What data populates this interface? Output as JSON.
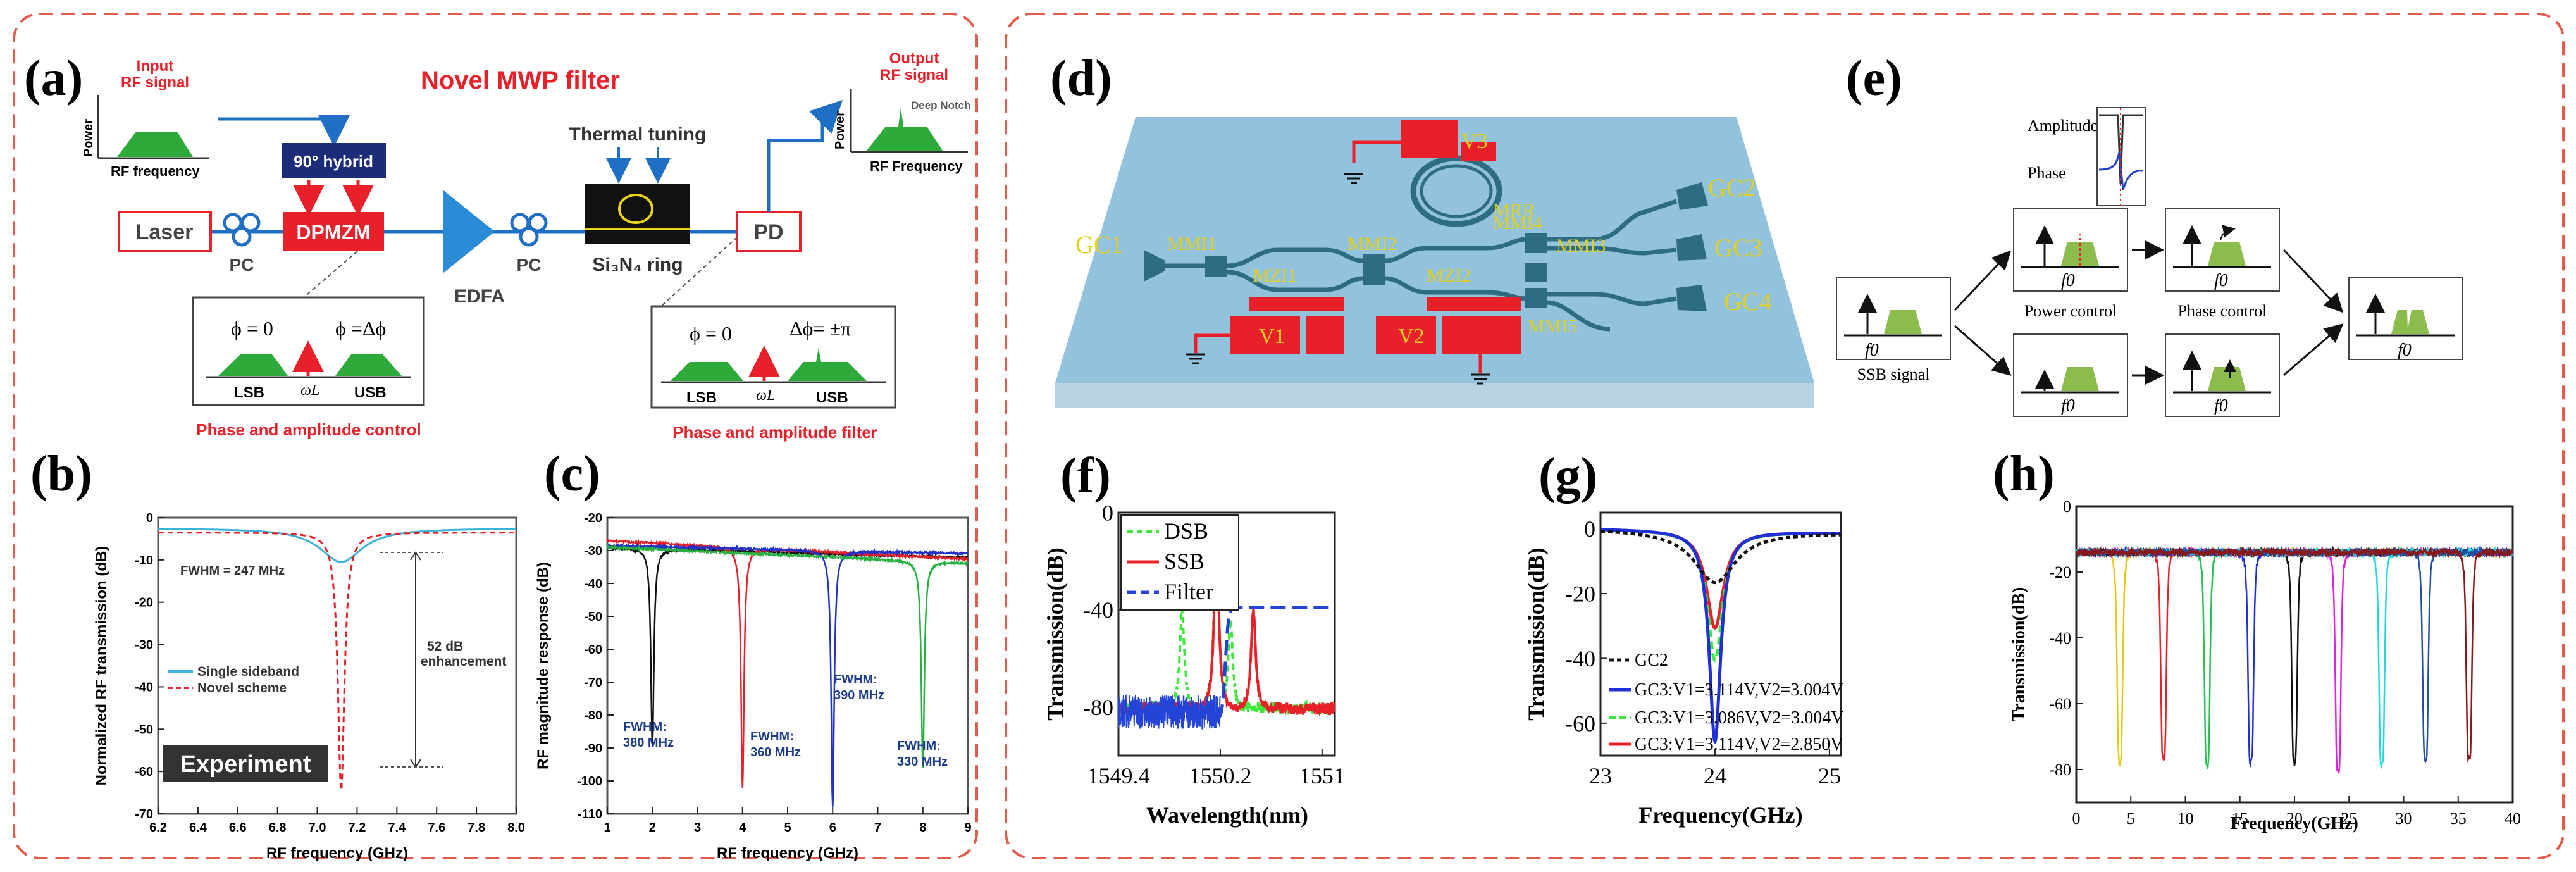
{
  "colors": {
    "frame": "#e25b4b",
    "red": "#e8202a",
    "green": "#2eaa3a",
    "navy": "#1d2c78",
    "blue": "#1f6fc4",
    "chipteal": "#2e6c84",
    "gcyellow": "#e0d020",
    "marker": "#f0e020"
  },
  "a": {
    "letter": "(a)",
    "title": "Novel MWP filter",
    "input_label_1": "Input",
    "input_label_2": "RF signal",
    "power_label": "Power",
    "rf_freq_label": "RF frequency",
    "hybrid_label": "90° hybrid",
    "laser_label": "Laser",
    "dpmzm_label": "DPMZM",
    "pc_label_1": "PC",
    "edfa_label": "EDFA",
    "pc_label_2": "PC",
    "thermal_label": "Thermal tuning",
    "ring_label": "Si₃N₄ ring",
    "pd_label": "PD",
    "output_label_1": "Output",
    "output_label_2": "RF signal",
    "deep_notch_label": "Deep Notch",
    "output_power_label": "Power",
    "output_freq_label": "RF Frequency",
    "inset1_phi0": "ϕ = 0",
    "inset1_phidelta": "ϕ =Δϕ",
    "inset1_lsb": "LSB",
    "inset1_usb": "USB",
    "inset1_omega": "ωL",
    "inset2_phi0": "ϕ = 0",
    "inset2_dphi": "Δϕ= ±π",
    "inset2_lsb": "LSB",
    "inset2_usb": "USB",
    "inset2_omega": "ωL",
    "caption_left": "Phase and amplitude control",
    "caption_right": "Phase and amplitude filter"
  },
  "b": {
    "letter": "(b)",
    "fwhm_label": "FWHM = 247 MHz",
    "enhancement_1": "52 dB",
    "enhancement_2": "enhancement",
    "legend_ssb": "Single sideband",
    "legend_novel": "Novel scheme",
    "badge": "Experiment",
    "xlabel": "RF frequency (GHz)",
    "ylabel": "Normalized RF transmission (dB)"
  },
  "c": {
    "letter": "(c)",
    "xlabel": "RF frequency (GHz)",
    "ylabel": "RF magnitude response (dB)",
    "fwhm_labels": [
      {
        "l1": "FWHM:",
        "l2": "380 MHz"
      },
      {
        "l1": "FWHM:",
        "l2": "360 MHz"
      },
      {
        "l1": "FWHM:",
        "l2": "390 MHz"
      },
      {
        "l1": "FWHM:",
        "l2": "330 MHz"
      }
    ]
  },
  "d": {
    "letter": "(d)",
    "v3": "V3",
    "v1": "V1",
    "v2": "V2",
    "mrr": "MRR",
    "gc1": "GC1",
    "gc2": "GC2",
    "gc3": "GC3",
    "gc4": "GC4",
    "mmi1": "MMI1",
    "mmi2": "MMI2",
    "mmi3": "MMI3",
    "mmi4": "MMI4",
    "mmi5": "MMI5",
    "mzi1": "MZI1",
    "mzi2": "MZI2"
  },
  "e": {
    "letter": "(e)",
    "amplitude": "Amplitude",
    "phase": "Phase",
    "f0": "f0",
    "power_control": "Power control",
    "phase_control": "Phase control",
    "ssb_signal": "SSB signal"
  },
  "f": {
    "letter": "(f)",
    "legend_dsb": "DSB",
    "legend_ssb": "SSB",
    "legend_filter": "Filter",
    "xlabel": "Wavelength(nm)",
    "ylabel": "Transmission(dB)"
  },
  "g": {
    "letter": "(g)",
    "legend": [
      "GC2",
      "GC3:V1=3.114V,V2=3.004V",
      "GC3:V1=3.086V,V2=3.004V",
      "GC3:V1=3.114V,V2=2.850V"
    ],
    "xlabel": "Frequency(GHz)",
    "ylabel": "Transmission(dB)"
  },
  "h": {
    "letter": "(h)",
    "xlabel": "Frequency(GHz)",
    "ylabel": "Transmission(dB)"
  },
  "chart_data": [
    {
      "id": "b",
      "type": "line",
      "xlabel": "RF frequency (GHz)",
      "ylabel": "Normalized RF transmission (dB)",
      "xlim": [
        6.2,
        8.0
      ],
      "ylim": [
        -70,
        0
      ],
      "xticks": [
        "6.2",
        "6.4",
        "6.6",
        "6.8",
        "7.0",
        "7.2",
        "7.4",
        "7.6",
        "7.8",
        "8.0"
      ],
      "yticks": [
        "0",
        "-10",
        "-20",
        "-30",
        "-40",
        "-50",
        "-60",
        "-70"
      ],
      "series": [
        {
          "name": "Single sideband",
          "color": "#3bb3d9",
          "dash": "",
          "baseline": -2.5,
          "center": 7.12,
          "depth": 8,
          "width": 0.13
        },
        {
          "name": "Novel scheme",
          "color": "#e8202a",
          "dash": "9,6",
          "baseline": -3.5,
          "center": 7.12,
          "depth": 61,
          "width": 0.02
        }
      ]
    },
    {
      "id": "c",
      "type": "line",
      "xlabel": "RF frequency (GHz)",
      "ylabel": "RF magnitude response (dB)",
      "xlim": [
        1,
        9
      ],
      "ylim": [
        -110,
        -20
      ],
      "xticks": [
        "1",
        "2",
        "3",
        "4",
        "5",
        "6",
        "7",
        "8",
        "9"
      ],
      "yticks": [
        "-20",
        "-30",
        "-40",
        "-50",
        "-60",
        "-70",
        "-80",
        "-90",
        "-100",
        "-110"
      ],
      "series": [
        {
          "name": "2 GHz",
          "color": "#111111",
          "baseline": -29,
          "slope": -0.4,
          "center": 2,
          "depth": 60,
          "width": 0.04
        },
        {
          "name": "4 GHz",
          "color": "#e8202a",
          "baseline": -27,
          "slope": -0.7,
          "center": 4,
          "depth": 73,
          "width": 0.04
        },
        {
          "name": "6 GHz",
          "color": "#2030c8",
          "baseline": -28.5,
          "slope": -0.3,
          "center": 6,
          "depth": 78,
          "width": 0.04
        },
        {
          "name": "8 GHz",
          "color": "#28b040",
          "baseline": -29,
          "slope": -0.6,
          "center": 8,
          "depth": 63,
          "width": 0.04
        }
      ]
    },
    {
      "id": "f",
      "type": "line",
      "xlabel": "Wavelength(nm)",
      "ylabel": "Transmission(dB)",
      "xlim": [
        1549.4,
        1551.1
      ],
      "ylim": [
        -100,
        0
      ],
      "xticks": [
        "1549.4",
        "1550.2",
        "1551"
      ],
      "yticks": [
        "0",
        "-40",
        "-80"
      ],
      "series": [
        {
          "name": "DSB",
          "color": "#3ee83a",
          "dash": "10,7",
          "noise_floor": -82,
          "peaks": [
            [
              1549.9,
              -40
            ],
            [
              1550.17,
              -5
            ],
            [
              1550.28,
              -45
            ]
          ]
        },
        {
          "name": "SSB",
          "color": "#e8202a",
          "dash": "",
          "noise_floor": -82,
          "peaks": [
            [
              1550.17,
              -11
            ],
            [
              1550.46,
              -40
            ]
          ]
        },
        {
          "name": "Filter",
          "color": "#2444d8",
          "dash": "24,10",
          "edge": 1550.24,
          "high": -39,
          "low": -85
        }
      ]
    },
    {
      "id": "g",
      "type": "line",
      "xlabel": "Frequency(GHz)",
      "ylabel": "Transmission(dB)",
      "xlim": [
        23,
        25.1
      ],
      "ylim": [
        -70,
        5
      ],
      "xticks": [
        "23",
        "24",
        "25"
      ],
      "yticks": [
        "0",
        "-20",
        "-40",
        "-60"
      ],
      "series": [
        {
          "name": "GC2",
          "color": "#111111",
          "dash": "7,5",
          "center": 24,
          "depth": 16,
          "width": 0.22
        },
        {
          "name": "GC3:V1=3.114V,V2=3.004V",
          "color": "#2030d8",
          "dash": "",
          "center": 24,
          "depth": 65,
          "width": 0.06
        },
        {
          "name": "GC3:V1=3.086V,V2=3.004V",
          "color": "#3ee83a",
          "dash": "12,7",
          "center": 24,
          "depth": 40,
          "width": 0.08
        },
        {
          "name": "GC3:V1=3.114V,V2=2.850V",
          "color": "#e8202a",
          "dash": "",
          "center": 24,
          "depth": 30,
          "width": 0.09
        }
      ]
    },
    {
      "id": "h",
      "type": "line",
      "xlabel": "Frequency(GHz)",
      "ylabel": "Transmission(dB)",
      "xlim": [
        0,
        40
      ],
      "ylim": [
        -90,
        0
      ],
      "xticks": [
        "0",
        "5",
        "10",
        "15",
        "20",
        "25",
        "30",
        "35",
        "40"
      ],
      "yticks": [
        "0",
        "-20",
        "-40",
        "-60",
        "-80"
      ],
      "baseline": -14,
      "notches": [
        {
          "f": 4,
          "depth": -78,
          "color": "#e8c818"
        },
        {
          "f": 8,
          "depth": -77,
          "color": "#e8202a"
        },
        {
          "f": 12,
          "depth": -79,
          "color": "#28c050"
        },
        {
          "f": 16,
          "depth": -78,
          "color": "#2030d8"
        },
        {
          "f": 20,
          "depth": -78,
          "color": "#111111"
        },
        {
          "f": 24,
          "depth": -81,
          "color": "#e020e8"
        },
        {
          "f": 28,
          "depth": -79,
          "color": "#20d8e0"
        },
        {
          "f": 32,
          "depth": -78,
          "color": "#2050a0"
        },
        {
          "f": 36,
          "depth": -77,
          "color": "#8a1818"
        }
      ]
    }
  ]
}
